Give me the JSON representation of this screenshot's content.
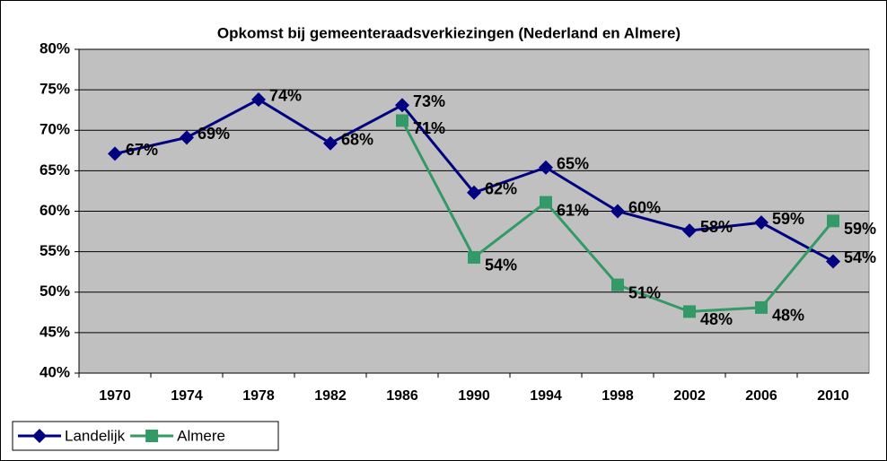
{
  "chart_data": {
    "type": "line",
    "title": "Opkomst bij gemeenteraadsverkiezingen (Nederland en Almere)",
    "categories": [
      "1970",
      "1974",
      "1978",
      "1982",
      "1986",
      "1990",
      "1994",
      "1998",
      "2002",
      "2006",
      "2010"
    ],
    "series": [
      {
        "name": "Landelijk",
        "color": "#000080",
        "marker": "diamond",
        "values": [
          67.1,
          69.1,
          73.8,
          68.4,
          73.1,
          62.3,
          65.4,
          60.0,
          57.6,
          58.6,
          53.8
        ],
        "value_labels": [
          "67%",
          "69%",
          "74%",
          "68%",
          "73%",
          "62%",
          "65%",
          "60%",
          "58%",
          "59%",
          "54%"
        ]
      },
      {
        "name": "Almere",
        "color": "#339966",
        "marker": "square",
        "values": [
          null,
          null,
          null,
          null,
          71.2,
          54.3,
          61.1,
          50.9,
          47.6,
          48.1,
          58.8
        ],
        "value_labels": [
          null,
          null,
          null,
          null,
          "71%",
          "54%",
          "61%",
          "51%",
          "48%",
          "48%",
          "59%"
        ]
      }
    ],
    "ylim": [
      40,
      80
    ],
    "yticks": [
      {
        "value": 40,
        "label": "40%"
      },
      {
        "value": 45,
        "label": "45%"
      },
      {
        "value": 50,
        "label": "50%"
      },
      {
        "value": 55,
        "label": "55%"
      },
      {
        "value": 60,
        "label": "60%"
      },
      {
        "value": 65,
        "label": "65%"
      },
      {
        "value": 70,
        "label": "70%"
      },
      {
        "value": 75,
        "label": "75%"
      },
      {
        "value": 80,
        "label": "80%"
      }
    ],
    "grid": true,
    "legend": "bottom-left",
    "plot_background": "#c0c0c0"
  }
}
